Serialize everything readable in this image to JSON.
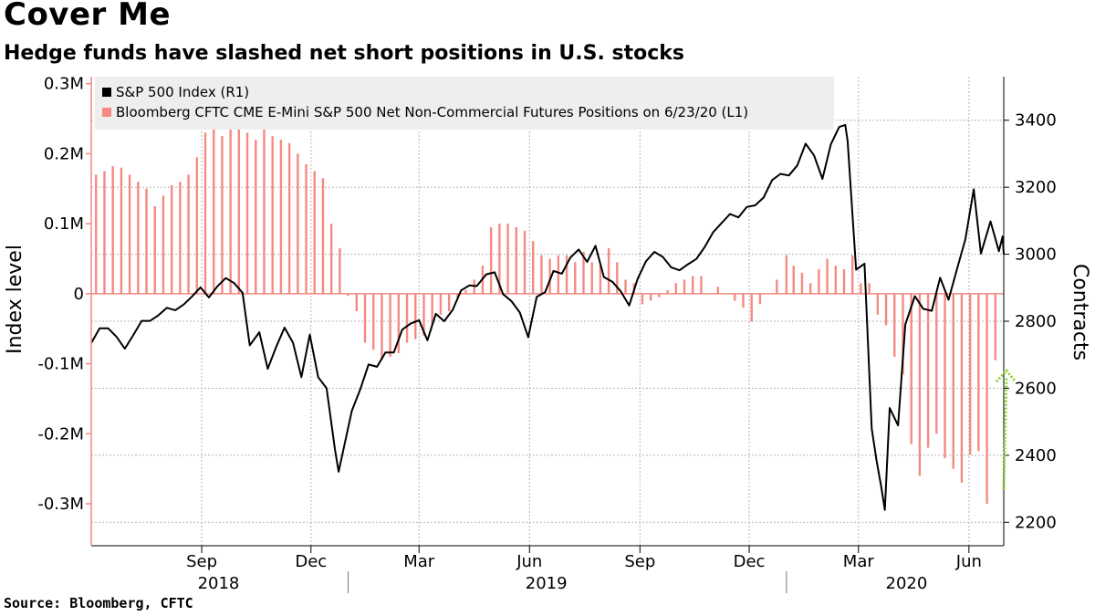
{
  "title": "Cover Me",
  "subtitle": "Hedge funds have slashed net short positions in U.S. stocks",
  "source": "Source: Bloomberg, CFTC",
  "colors": {
    "index_line": "#000000",
    "positions_bar": "#f48a82",
    "arrow": "#8fd12f",
    "grid": "#b5b5b5",
    "legend_bg": "#eeeeee"
  },
  "chart_data": {
    "type": "bar+line",
    "x_start": "2018-06-01",
    "x_end": "2020-06-30",
    "left_axis": {
      "label": "Index level",
      "range": [
        -360000,
        310000
      ],
      "ticks": [
        {
          "value": 300000,
          "label": "0.3M"
        },
        {
          "value": 200000,
          "label": "0.2M"
        },
        {
          "value": 100000,
          "label": "0.1M"
        },
        {
          "value": 0,
          "label": "0"
        },
        {
          "value": -100000,
          "label": "-0.1M"
        },
        {
          "value": -200000,
          "label": "-0.2M"
        },
        {
          "value": -300000,
          "label": "-0.3M"
        }
      ]
    },
    "right_axis": {
      "label": "Contracts",
      "range": [
        2130,
        3530
      ],
      "ticks": [
        {
          "value": 3400,
          "label": "3400"
        },
        {
          "value": 3200,
          "label": "3200"
        },
        {
          "value": 3000,
          "label": "3000"
        },
        {
          "value": 2800,
          "label": "2800"
        },
        {
          "value": 2600,
          "label": "2600"
        },
        {
          "value": 2400,
          "label": "2400"
        },
        {
          "value": 2200,
          "label": "2200"
        }
      ]
    },
    "x_ticks": [
      {
        "date": "2018-09-01",
        "label": "Sep"
      },
      {
        "date": "2018-12-01",
        "label": "Dec"
      },
      {
        "date": "2019-03-01",
        "label": "Mar"
      },
      {
        "date": "2019-06-01",
        "label": "Jun"
      },
      {
        "date": "2019-09-01",
        "label": "Sep"
      },
      {
        "date": "2019-12-01",
        "label": "Dec"
      },
      {
        "date": "2020-03-01",
        "label": "Mar"
      },
      {
        "date": "2020-06-01",
        "label": "Jun"
      }
    ],
    "year_labels": [
      {
        "date": "2018-09-15",
        "label": "2018"
      },
      {
        "date": "2019-06-15",
        "label": "2019"
      },
      {
        "date": "2020-04-10",
        "label": "2020"
      }
    ],
    "year_dividers": [
      "2019-01-01",
      "2020-01-01"
    ],
    "legend": [
      {
        "name": "S&P 500 Index (R1)",
        "kind": "line"
      },
      {
        "name": "Bloomberg CFTC CME E-Mini S&P 500 Net Non-Commercial Futures Positions  on 6/23/20 (L1)",
        "kind": "bar"
      }
    ],
    "series": [
      {
        "name": "S&P 500 Index (R1)",
        "axis": "right",
        "type": "line",
        "points": [
          [
            "2018-06-01",
            2735
          ],
          [
            "2018-06-08",
            2779
          ],
          [
            "2018-06-15",
            2779
          ],
          [
            "2018-06-22",
            2754
          ],
          [
            "2018-06-29",
            2718
          ],
          [
            "2018-07-06",
            2759
          ],
          [
            "2018-07-13",
            2801
          ],
          [
            "2018-07-20",
            2801
          ],
          [
            "2018-07-27",
            2818
          ],
          [
            "2018-08-03",
            2840
          ],
          [
            "2018-08-10",
            2833
          ],
          [
            "2018-08-17",
            2850
          ],
          [
            "2018-08-24",
            2874
          ],
          [
            "2018-08-31",
            2901
          ],
          [
            "2018-09-07",
            2871
          ],
          [
            "2018-09-14",
            2904
          ],
          [
            "2018-09-21",
            2929
          ],
          [
            "2018-09-28",
            2914
          ],
          [
            "2018-10-05",
            2885
          ],
          [
            "2018-10-11",
            2728
          ],
          [
            "2018-10-19",
            2767
          ],
          [
            "2018-10-26",
            2658
          ],
          [
            "2018-11-02",
            2723
          ],
          [
            "2018-11-09",
            2781
          ],
          [
            "2018-11-16",
            2736
          ],
          [
            "2018-11-23",
            2633
          ],
          [
            "2018-11-30",
            2760
          ],
          [
            "2018-12-07",
            2633
          ],
          [
            "2018-12-14",
            2600
          ],
          [
            "2018-12-21",
            2417
          ],
          [
            "2018-12-24",
            2351
          ],
          [
            "2019-01-04",
            2532
          ],
          [
            "2019-01-11",
            2596
          ],
          [
            "2019-01-18",
            2671
          ],
          [
            "2019-01-25",
            2664
          ],
          [
            "2019-02-01",
            2707
          ],
          [
            "2019-02-08",
            2707
          ],
          [
            "2019-02-15",
            2775
          ],
          [
            "2019-02-22",
            2793
          ],
          [
            "2019-03-01",
            2803
          ],
          [
            "2019-03-08",
            2743
          ],
          [
            "2019-03-15",
            2822
          ],
          [
            "2019-03-22",
            2800
          ],
          [
            "2019-03-29",
            2834
          ],
          [
            "2019-04-05",
            2892
          ],
          [
            "2019-04-12",
            2907
          ],
          [
            "2019-04-18",
            2905
          ],
          [
            "2019-04-26",
            2940
          ],
          [
            "2019-05-03",
            2946
          ],
          [
            "2019-05-10",
            2881
          ],
          [
            "2019-05-17",
            2860
          ],
          [
            "2019-05-24",
            2826
          ],
          [
            "2019-05-31",
            2752
          ],
          [
            "2019-06-07",
            2873
          ],
          [
            "2019-06-14",
            2887
          ],
          [
            "2019-06-21",
            2950
          ],
          [
            "2019-06-28",
            2942
          ],
          [
            "2019-07-05",
            2990
          ],
          [
            "2019-07-12",
            3014
          ],
          [
            "2019-07-19",
            2977
          ],
          [
            "2019-07-26",
            3025
          ],
          [
            "2019-08-02",
            2932
          ],
          [
            "2019-08-09",
            2918
          ],
          [
            "2019-08-16",
            2889
          ],
          [
            "2019-08-23",
            2847
          ],
          [
            "2019-08-30",
            2926
          ],
          [
            "2019-09-06",
            2979
          ],
          [
            "2019-09-13",
            3007
          ],
          [
            "2019-09-20",
            2992
          ],
          [
            "2019-09-27",
            2961
          ],
          [
            "2019-10-04",
            2952
          ],
          [
            "2019-10-11",
            2970
          ],
          [
            "2019-10-18",
            2986
          ],
          [
            "2019-10-25",
            3022
          ],
          [
            "2019-11-01",
            3066
          ],
          [
            "2019-11-08",
            3093
          ],
          [
            "2019-11-15",
            3120
          ],
          [
            "2019-11-22",
            3110
          ],
          [
            "2019-11-29",
            3141
          ],
          [
            "2019-12-06",
            3146
          ],
          [
            "2019-12-13",
            3169
          ],
          [
            "2019-12-20",
            3221
          ],
          [
            "2019-12-27",
            3240
          ],
          [
            "2020-01-03",
            3235
          ],
          [
            "2020-01-10",
            3265
          ],
          [
            "2020-01-17",
            3330
          ],
          [
            "2020-01-24",
            3295
          ],
          [
            "2020-01-31",
            3225
          ],
          [
            "2020-02-07",
            3328
          ],
          [
            "2020-02-14",
            3380
          ],
          [
            "2020-02-19",
            3386
          ],
          [
            "2020-02-21",
            3338
          ],
          [
            "2020-02-28",
            2954
          ],
          [
            "2020-03-06",
            2972
          ],
          [
            "2020-03-12",
            2480
          ],
          [
            "2020-03-16",
            2386
          ],
          [
            "2020-03-20",
            2305
          ],
          [
            "2020-03-23",
            2237
          ],
          [
            "2020-03-27",
            2541
          ],
          [
            "2020-04-03",
            2489
          ],
          [
            "2020-04-09",
            2790
          ],
          [
            "2020-04-17",
            2875
          ],
          [
            "2020-04-24",
            2837
          ],
          [
            "2020-05-01",
            2831
          ],
          [
            "2020-05-08",
            2930
          ],
          [
            "2020-05-15",
            2864
          ],
          [
            "2020-05-22",
            2955
          ],
          [
            "2020-05-29",
            3044
          ],
          [
            "2020-06-05",
            3194
          ],
          [
            "2020-06-11",
            3002
          ],
          [
            "2020-06-19",
            3098
          ],
          [
            "2020-06-26",
            3009
          ],
          [
            "2020-06-29",
            3053
          ],
          [
            "2020-06-30",
            3000
          ]
        ]
      },
      {
        "name": "Bloomberg CFTC CME E-Mini S&P 500 Net Non-Commercial Futures Positions  on 6/23/20 (L1)",
        "axis": "left",
        "type": "bar",
        "points": [
          [
            "2018-06-05",
            170000
          ],
          [
            "2018-06-12",
            175000
          ],
          [
            "2018-06-19",
            182000
          ],
          [
            "2018-06-26",
            180000
          ],
          [
            "2018-07-03",
            170000
          ],
          [
            "2018-07-10",
            160000
          ],
          [
            "2018-07-17",
            150000
          ],
          [
            "2018-07-24",
            125000
          ],
          [
            "2018-07-31",
            140000
          ],
          [
            "2018-08-07",
            155000
          ],
          [
            "2018-08-14",
            160000
          ],
          [
            "2018-08-21",
            170000
          ],
          [
            "2018-08-28",
            195000
          ],
          [
            "2018-09-04",
            230000
          ],
          [
            "2018-09-11",
            255000
          ],
          [
            "2018-09-18",
            225000
          ],
          [
            "2018-09-25",
            240000
          ],
          [
            "2018-10-02",
            255000
          ],
          [
            "2018-10-09",
            230000
          ],
          [
            "2018-10-16",
            220000
          ],
          [
            "2018-10-23",
            240000
          ],
          [
            "2018-10-30",
            225000
          ],
          [
            "2018-11-06",
            220000
          ],
          [
            "2018-11-13",
            215000
          ],
          [
            "2018-11-20",
            200000
          ],
          [
            "2018-11-27",
            185000
          ],
          [
            "2018-12-04",
            175000
          ],
          [
            "2018-12-11",
            165000
          ],
          [
            "2018-12-18",
            100000
          ],
          [
            "2018-12-25",
            65000
          ],
          [
            "2019-01-01",
            -3000
          ],
          [
            "2019-01-08",
            -25000
          ],
          [
            "2019-01-15",
            -70000
          ],
          [
            "2019-01-22",
            -80000
          ],
          [
            "2019-01-29",
            -95000
          ],
          [
            "2019-02-05",
            -90000
          ],
          [
            "2019-02-12",
            -85000
          ],
          [
            "2019-02-19",
            -70000
          ],
          [
            "2019-02-26",
            -65000
          ],
          [
            "2019-03-05",
            -60000
          ],
          [
            "2019-03-12",
            -45000
          ],
          [
            "2019-03-19",
            -30000
          ],
          [
            "2019-03-26",
            -25000
          ],
          [
            "2019-04-02",
            -5000
          ],
          [
            "2019-04-09",
            5000
          ],
          [
            "2019-04-16",
            20000
          ],
          [
            "2019-04-23",
            40000
          ],
          [
            "2019-04-30",
            95000
          ],
          [
            "2019-05-07",
            100000
          ],
          [
            "2019-05-14",
            100000
          ],
          [
            "2019-05-21",
            95000
          ],
          [
            "2019-05-28",
            90000
          ],
          [
            "2019-06-04",
            75000
          ],
          [
            "2019-06-11",
            55000
          ],
          [
            "2019-06-18",
            50000
          ],
          [
            "2019-06-25",
            55000
          ],
          [
            "2019-07-02",
            55000
          ],
          [
            "2019-07-09",
            45000
          ],
          [
            "2019-07-16",
            60000
          ],
          [
            "2019-07-23",
            45000
          ],
          [
            "2019-07-30",
            40000
          ],
          [
            "2019-08-06",
            65000
          ],
          [
            "2019-08-13",
            45000
          ],
          [
            "2019-08-20",
            20000
          ],
          [
            "2019-08-27",
            15000
          ],
          [
            "2019-09-03",
            -15000
          ],
          [
            "2019-09-10",
            -10000
          ],
          [
            "2019-09-17",
            -5000
          ],
          [
            "2019-09-24",
            5000
          ],
          [
            "2019-10-01",
            15000
          ],
          [
            "2019-10-08",
            20000
          ],
          [
            "2019-10-15",
            25000
          ],
          [
            "2019-10-22",
            25000
          ],
          [
            "2019-10-29",
            0
          ],
          [
            "2019-11-05",
            10000
          ],
          [
            "2019-11-12",
            0
          ],
          [
            "2019-11-19",
            -10000
          ],
          [
            "2019-11-26",
            -20000
          ],
          [
            "2019-12-03",
            -40000
          ],
          [
            "2019-12-10",
            -15000
          ],
          [
            "2019-12-17",
            0
          ],
          [
            "2019-12-24",
            20000
          ],
          [
            "2020-01-01",
            55000
          ],
          [
            "2020-01-07",
            40000
          ],
          [
            "2020-01-14",
            30000
          ],
          [
            "2020-01-21",
            15000
          ],
          [
            "2020-01-28",
            35000
          ],
          [
            "2020-02-04",
            50000
          ],
          [
            "2020-02-11",
            40000
          ],
          [
            "2020-02-18",
            35000
          ],
          [
            "2020-02-25",
            55000
          ],
          [
            "2020-03-03",
            15000
          ],
          [
            "2020-03-10",
            15000
          ],
          [
            "2020-03-17",
            -30000
          ],
          [
            "2020-03-24",
            -45000
          ],
          [
            "2020-03-31",
            -90000
          ],
          [
            "2020-04-07",
            -115000
          ],
          [
            "2020-04-14",
            -215000
          ],
          [
            "2020-04-21",
            -260000
          ],
          [
            "2020-04-28",
            -220000
          ],
          [
            "2020-05-05",
            -200000
          ],
          [
            "2020-05-12",
            -235000
          ],
          [
            "2020-05-19",
            -250000
          ],
          [
            "2020-05-26",
            -270000
          ],
          [
            "2020-06-02",
            -230000
          ],
          [
            "2020-06-09",
            -225000
          ],
          [
            "2020-06-16",
            -300000
          ],
          [
            "2020-06-23",
            -95000
          ]
        ]
      }
    ],
    "annotation": {
      "type": "arrow",
      "from_value_left": -280000,
      "to_value_left": -110000,
      "date": "2020-06-30"
    }
  }
}
